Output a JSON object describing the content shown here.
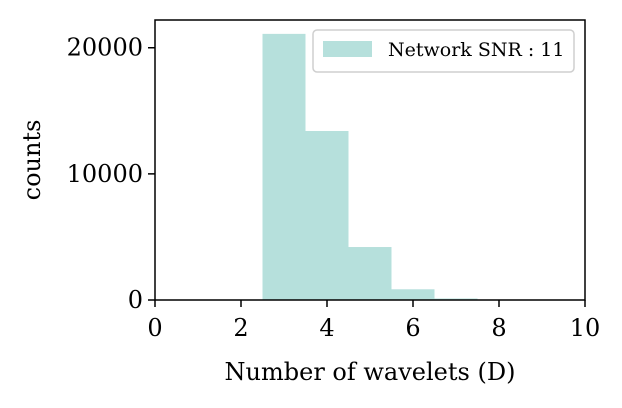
{
  "chart_data": {
    "type": "bar",
    "title": "",
    "xlabel": "Number of wavelets (D)",
    "ylabel": "counts",
    "xlim": [
      0,
      10
    ],
    "ylim": [
      0,
      22200
    ],
    "xticks": [
      0,
      2,
      4,
      6,
      8,
      10
    ],
    "yticks": [
      0,
      10000,
      20000
    ],
    "grid": false,
    "legend_position": "top-right",
    "series": [
      {
        "name": "Network SNR : 11",
        "color": "#b6e0dc",
        "bins": [
          {
            "x0": 2.5,
            "x1": 3.5,
            "value": 21100
          },
          {
            "x0": 3.5,
            "x1": 4.5,
            "value": 13400
          },
          {
            "x0": 4.5,
            "x1": 5.5,
            "value": 4200
          },
          {
            "x0": 5.5,
            "x1": 6.5,
            "value": 850
          },
          {
            "x0": 6.5,
            "x1": 7.5,
            "value": 120
          }
        ]
      }
    ]
  }
}
